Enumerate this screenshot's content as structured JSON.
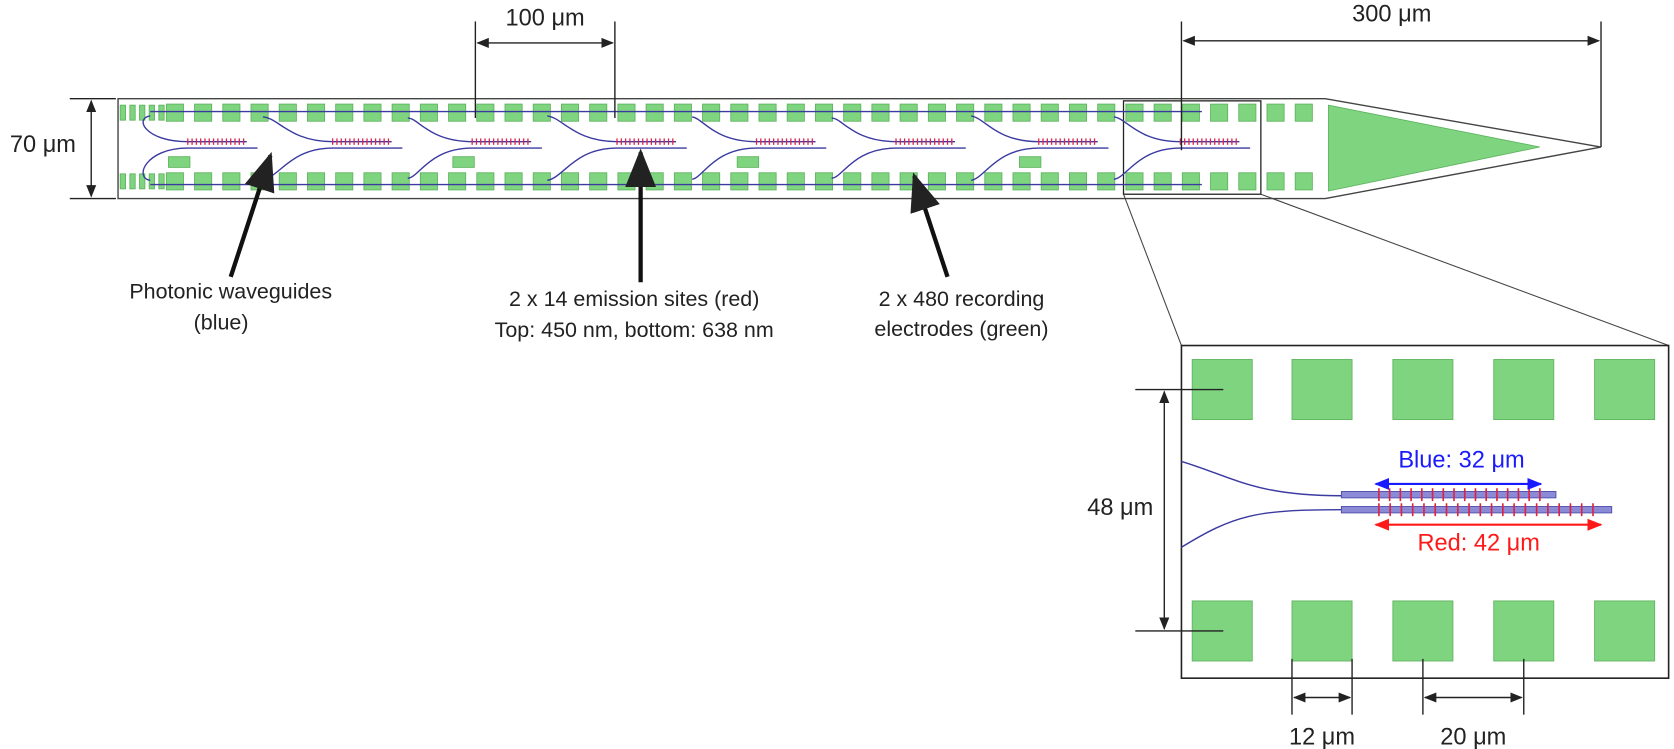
{
  "dimensions": {
    "pitch_100": "100 μm",
    "tip_300": "300 μm",
    "width_70": "70 μm"
  },
  "callouts": [
    {
      "lines": [
        "Photonic waveguides",
        "(blue)"
      ]
    },
    {
      "lines": [
        "2 x 14 emission sites (red)",
        "Top: 450 nm, bottom: 638 nm"
      ]
    },
    {
      "lines": [
        "2 x 480 recording",
        "electrodes (green)"
      ]
    }
  ],
  "inset": {
    "height": "48 μm",
    "blue": "Blue: 32 μm",
    "red": "Red: 42 μm",
    "electrode_size": "12 μm",
    "electrode_pitch": "20 μm"
  }
}
